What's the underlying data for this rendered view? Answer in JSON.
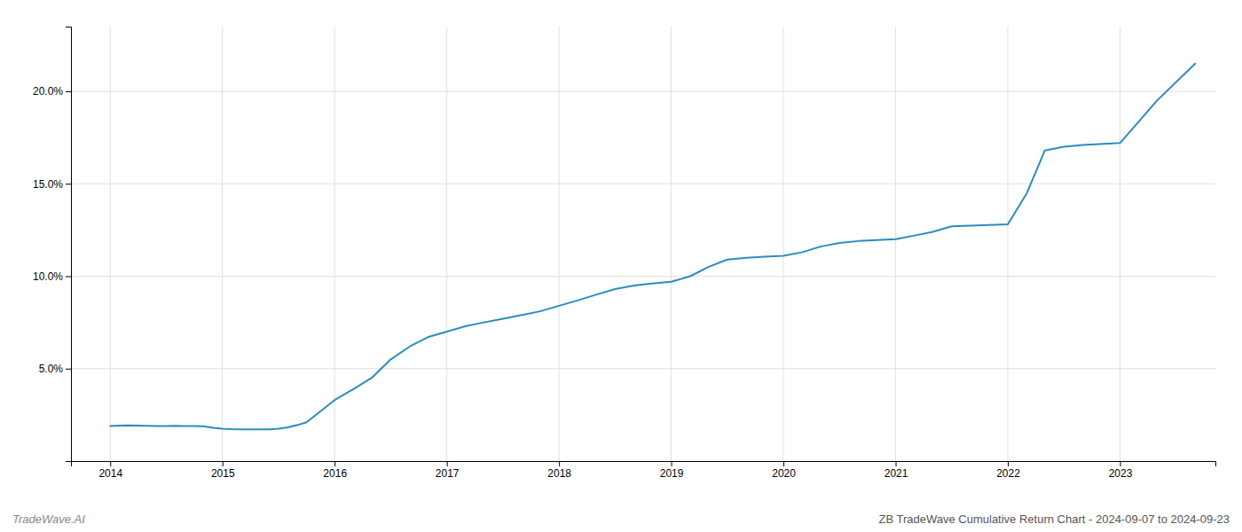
{
  "chart_data": {
    "type": "line",
    "title": "ZB TradeWave Cumulative Return Chart - 2024-09-07 to 2024-09-23",
    "annotations": [
      "TradeWave.AI"
    ],
    "color": "#2b8cbe",
    "grid": true,
    "x": [
      2014.0,
      2014.08,
      2014.17,
      2014.25,
      2014.33,
      2014.42,
      2014.5,
      2014.58,
      2014.67,
      2014.75,
      2014.83,
      2014.92,
      2015.0,
      2015.08,
      2015.17,
      2015.25,
      2015.33,
      2015.42,
      2015.5,
      2015.58,
      2015.67,
      2015.75,
      2016.0,
      2016.17,
      2016.33,
      2016.5,
      2016.67,
      2016.83,
      2017.0,
      2017.17,
      2017.33,
      2017.5,
      2017.67,
      2017.83,
      2018.0,
      2018.17,
      2018.33,
      2018.5,
      2018.67,
      2018.83,
      2019.0,
      2019.17,
      2019.33,
      2019.5,
      2019.67,
      2019.83,
      2020.0,
      2020.17,
      2020.33,
      2020.5,
      2020.67,
      2020.83,
      2021.0,
      2021.17,
      2021.33,
      2021.5,
      2022.0,
      2022.17,
      2022.33,
      2022.5,
      2022.67,
      2023.0,
      2023.33,
      2023.67
    ],
    "values": [
      1.9,
      1.92,
      1.93,
      1.92,
      1.91,
      1.9,
      1.9,
      1.91,
      1.9,
      1.89,
      1.88,
      1.8,
      1.75,
      1.73,
      1.72,
      1.71,
      1.71,
      1.72,
      1.75,
      1.82,
      1.95,
      2.1,
      3.3,
      3.9,
      4.5,
      5.5,
      6.2,
      6.7,
      7.0,
      7.3,
      7.5,
      7.7,
      7.9,
      8.1,
      8.4,
      8.7,
      9.0,
      9.3,
      9.5,
      9.6,
      9.7,
      10.0,
      10.5,
      10.9,
      11.0,
      11.05,
      11.1,
      11.3,
      11.6,
      11.8,
      11.9,
      11.95,
      12.0,
      12.2,
      12.4,
      12.7,
      12.8,
      14.5,
      16.8,
      17.0,
      17.1,
      17.2,
      19.5,
      21.5
    ],
    "xlim": [
      2013.65,
      2023.85
    ],
    "xticks": [
      2014,
      2015,
      2016,
      2017,
      2018,
      2019,
      2020,
      2021,
      2022,
      2023
    ],
    "ylim": [
      0,
      23.5
    ],
    "yticks": [
      {
        "value": 5.0,
        "label": "5.0%"
      },
      {
        "value": 10.0,
        "label": "10.0%"
      },
      {
        "value": 15.0,
        "label": "15.0%"
      },
      {
        "value": 20.0,
        "label": "20.0%"
      }
    ]
  }
}
